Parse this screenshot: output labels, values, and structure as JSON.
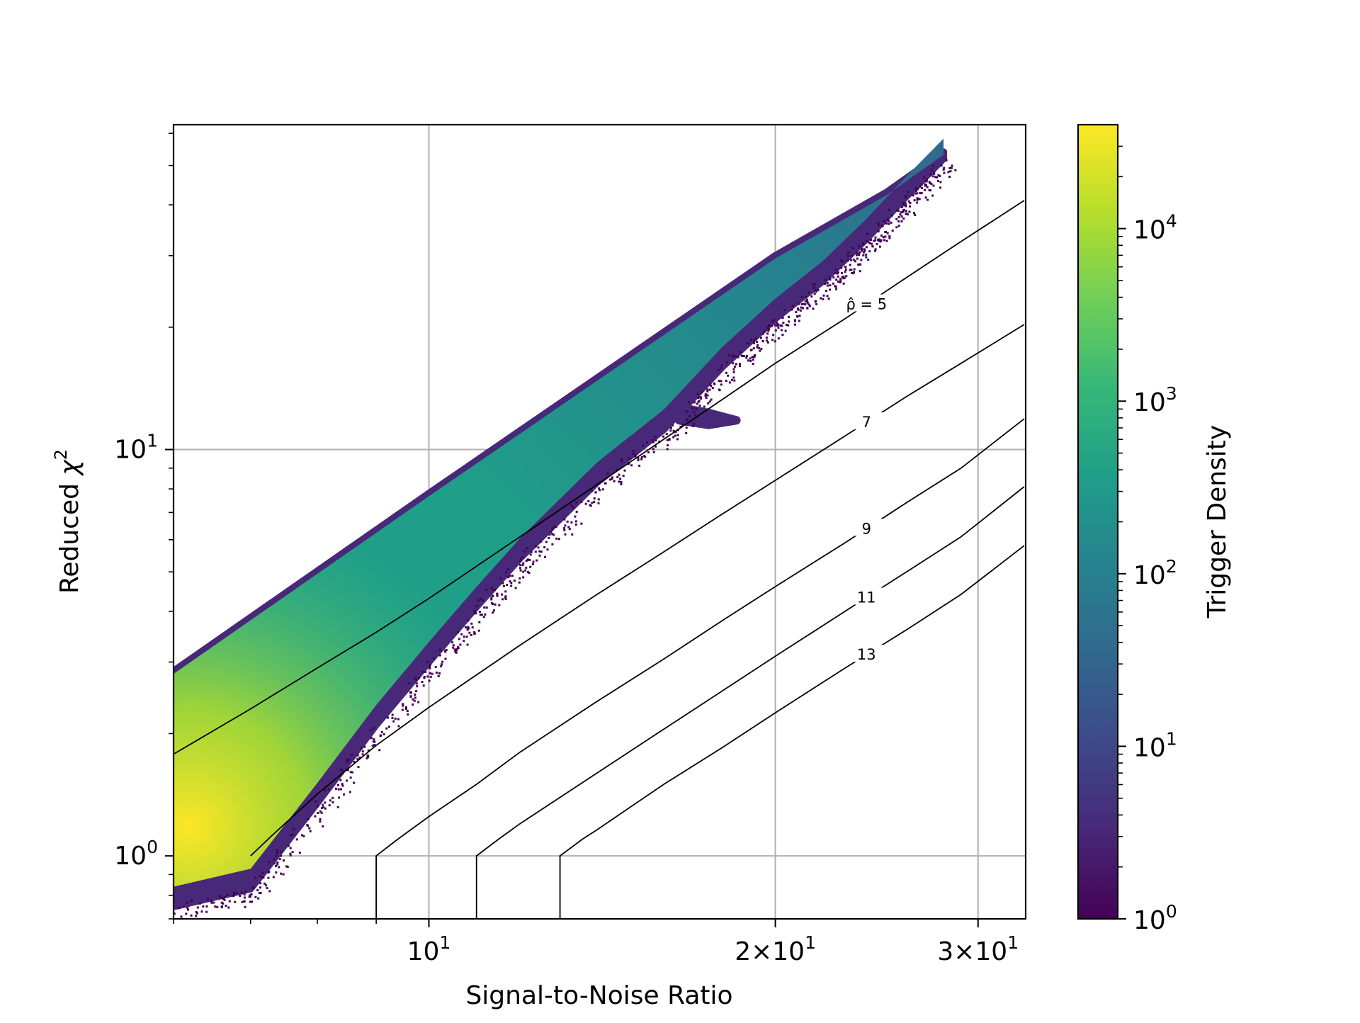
{
  "chart_data": {
    "type": "heatmap",
    "title": "",
    "xlabel": "Signal-to-Noise Ratio",
    "ylabel_text": "Reduced",
    "ylabel_symbol": "χ",
    "ylabel_exponent": "2",
    "x_scale": "log",
    "y_scale": "log",
    "xlim": [
      6.0,
      33.0
    ],
    "ylim": [
      0.7,
      63.0
    ],
    "grid": true,
    "x_major_ticks": [
      {
        "value": 10,
        "base": "10",
        "exponent": "1"
      },
      {
        "value": 20,
        "base": "2×10",
        "exponent": "1"
      },
      {
        "value": 30,
        "base": "3×10",
        "exponent": "1"
      }
    ],
    "x_minor_ticks": [
      6,
      7,
      8,
      9
    ],
    "y_major_ticks": [
      {
        "value": 1,
        "base": "10",
        "exponent": "0"
      },
      {
        "value": 10,
        "base": "10",
        "exponent": "1"
      }
    ],
    "colorbar": {
      "label": "Trigger Density",
      "scale": "log",
      "range": [
        1,
        40000
      ],
      "colormap": [
        "#440154",
        "#482878",
        "#3e4989",
        "#31688e",
        "#26828e",
        "#1f9e89",
        "#35b779",
        "#6ece58",
        "#b5de2b",
        "#fde725"
      ],
      "ticks": [
        {
          "value": 1,
          "base": "10",
          "exponent": "0"
        },
        {
          "value": 10,
          "base": "10",
          "exponent": "1"
        },
        {
          "value": 100,
          "base": "10",
          "exponent": "2"
        },
        {
          "value": 1000,
          "base": "10",
          "exponent": "3"
        },
        {
          "value": 10000,
          "base": "10",
          "exponent": "4"
        }
      ]
    },
    "density_region": {
      "upper_edge": [
        [
          6.0,
          2.85
        ],
        [
          10.0,
          7.8
        ],
        [
          20.0,
          30.0
        ],
        [
          25.0,
          43.0
        ],
        [
          28.0,
          54.0
        ]
      ],
      "lower_edge": [
        [
          6.0,
          0.75
        ],
        [
          7.0,
          0.83
        ],
        [
          8.0,
          1.35
        ],
        [
          9.0,
          2.1
        ],
        [
          10.0,
          3.0
        ],
        [
          11.0,
          4.1
        ],
        [
          12.0,
          5.4
        ],
        [
          14.0,
          8.3
        ],
        [
          16.0,
          11.2
        ],
        [
          18.0,
          16.0
        ],
        [
          20.0,
          21.0
        ],
        [
          22.0,
          26.0
        ],
        [
          24.0,
          33.0
        ],
        [
          26.0,
          42.0
        ],
        [
          28.0,
          52.0
        ]
      ],
      "side_lobe": [
        [
          16.5,
          12.7
        ],
        [
          17.5,
          12.3
        ],
        [
          18.5,
          11.8
        ],
        [
          17.5,
          11.5
        ],
        [
          16.5,
          11.8
        ]
      ]
    },
    "contours": [
      {
        "label": "ρ̂ = 5",
        "rho": 5,
        "label_x": 24.0,
        "points": [
          [
            6.0,
            1.78
          ],
          [
            7.0,
            2.3
          ],
          [
            8.0,
            2.9
          ],
          [
            9.0,
            3.55
          ],
          [
            10.0,
            4.3
          ],
          [
            12.0,
            6.1
          ],
          [
            14.0,
            8.2
          ],
          [
            16.0,
            10.6
          ],
          [
            18.0,
            13.3
          ],
          [
            20.0,
            16.3
          ],
          [
            23.0,
            21.0
          ],
          [
            26.0,
            26.5
          ],
          [
            29.0,
            32.5
          ],
          [
            32.9,
            41.0
          ]
        ]
      },
      {
        "label": "7",
        "rho": 7,
        "label_x": 24.0,
        "points": [
          [
            7.0,
            1.0
          ],
          [
            7.3,
            1.12
          ],
          [
            8.0,
            1.42
          ],
          [
            9.0,
            1.87
          ],
          [
            10.0,
            2.32
          ],
          [
            12.0,
            3.3
          ],
          [
            14.0,
            4.4
          ],
          [
            16.0,
            5.6
          ],
          [
            18.0,
            6.95
          ],
          [
            20.0,
            8.4
          ],
          [
            23.0,
            10.8
          ],
          [
            26.0,
            13.5
          ],
          [
            29.0,
            16.3
          ],
          [
            32.9,
            20.3
          ]
        ]
      },
      {
        "label": "9",
        "rho": 9,
        "label_x": 24.0,
        "points": [
          [
            9.0,
            0.7
          ],
          [
            9.0,
            1.0
          ],
          [
            9.4,
            1.1
          ],
          [
            10.0,
            1.25
          ],
          [
            11.0,
            1.5
          ],
          [
            12.0,
            1.8
          ],
          [
            14.0,
            2.4
          ],
          [
            16.0,
            3.05
          ],
          [
            18.0,
            3.8
          ],
          [
            20.0,
            4.6
          ],
          [
            23.0,
            5.9
          ],
          [
            26.0,
            7.4
          ],
          [
            29.0,
            9.0
          ],
          [
            32.9,
            11.9
          ]
        ]
      },
      {
        "label": "11",
        "rho": 11,
        "label_x": 24.0,
        "points": [
          [
            11.0,
            0.7
          ],
          [
            11.0,
            1.0
          ],
          [
            11.5,
            1.1
          ],
          [
            12.0,
            1.2
          ],
          [
            14.0,
            1.6
          ],
          [
            16.0,
            2.05
          ],
          [
            18.0,
            2.55
          ],
          [
            20.0,
            3.1
          ],
          [
            23.0,
            4.0
          ],
          [
            26.0,
            5.0
          ],
          [
            29.0,
            6.1
          ],
          [
            32.9,
            8.1
          ]
        ]
      },
      {
        "label": "13",
        "rho": 13,
        "label_x": 24.0,
        "points": [
          [
            13.0,
            0.7
          ],
          [
            13.0,
            1.0
          ],
          [
            13.6,
            1.1
          ],
          [
            14.0,
            1.16
          ],
          [
            16.0,
            1.5
          ],
          [
            18.0,
            1.85
          ],
          [
            20.0,
            2.25
          ],
          [
            23.0,
            2.9
          ],
          [
            26.0,
            3.6
          ],
          [
            29.0,
            4.4
          ],
          [
            32.9,
            5.8
          ]
        ]
      }
    ]
  }
}
